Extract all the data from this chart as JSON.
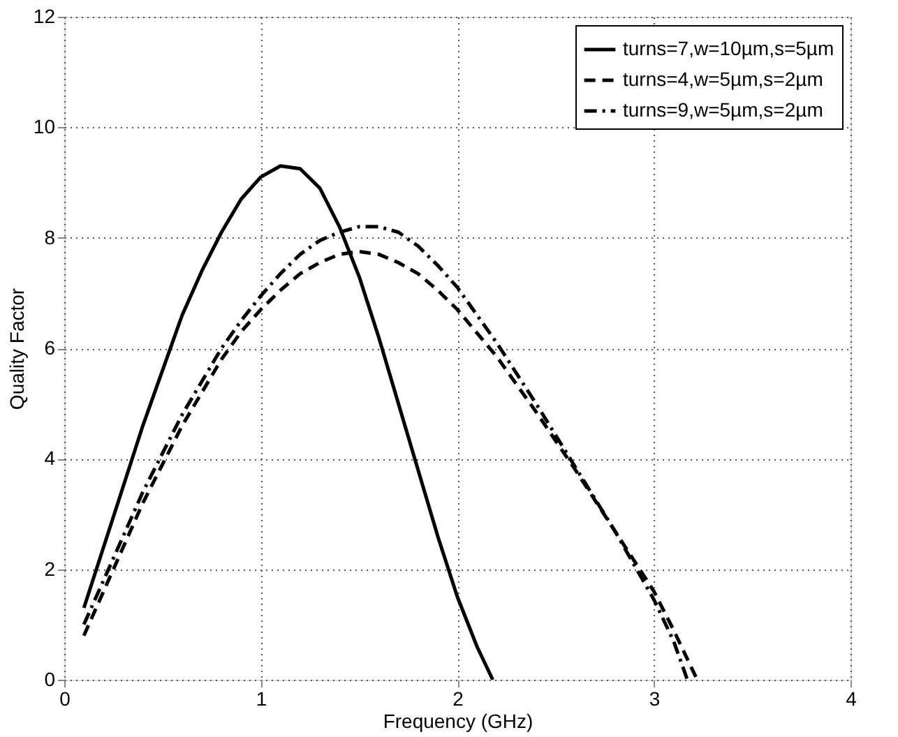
{
  "chart_data": {
    "type": "line",
    "xlabel": "Frequency (GHz)",
    "ylabel": "Quality Factor",
    "xlim": [
      0,
      4
    ],
    "ylim": [
      0,
      12
    ],
    "xticks": [
      0,
      1,
      2,
      3,
      4
    ],
    "yticks": [
      0,
      2,
      4,
      6,
      8,
      10,
      12
    ],
    "grid": true,
    "legend": "top right",
    "series": [
      {
        "name": "turns=7,w=10µm,s=5µm",
        "color": "#000000",
        "line_style": "solid",
        "x": [
          0.1,
          0.2,
          0.3,
          0.4,
          0.5,
          0.6,
          0.7,
          0.8,
          0.9,
          1.0,
          1.1,
          1.2,
          1.3,
          1.4,
          1.5,
          1.6,
          1.7,
          1.8,
          1.9,
          2.0,
          2.1,
          2.18
        ],
        "values": [
          1.3,
          2.4,
          3.5,
          4.6,
          5.6,
          6.6,
          7.4,
          8.1,
          8.7,
          9.1,
          9.3,
          9.25,
          8.9,
          8.2,
          7.3,
          6.2,
          5.0,
          3.8,
          2.6,
          1.5,
          0.6,
          0
        ]
      },
      {
        "name": "turns=4,w=5µm,s=2µm",
        "color": "#000000",
        "line_style": "dashed",
        "x": [
          0.1,
          0.2,
          0.3,
          0.4,
          0.5,
          0.6,
          0.7,
          0.8,
          0.9,
          1.0,
          1.1,
          1.2,
          1.3,
          1.4,
          1.5,
          1.6,
          1.7,
          1.8,
          1.9,
          2.0,
          2.2,
          2.4,
          2.6,
          2.8,
          3.0,
          3.1,
          3.22
        ],
        "values": [
          0.8,
          1.6,
          2.4,
          3.2,
          3.9,
          4.6,
          5.2,
          5.8,
          6.3,
          6.7,
          7.05,
          7.35,
          7.55,
          7.7,
          7.75,
          7.7,
          7.55,
          7.35,
          7.05,
          6.7,
          5.85,
          4.85,
          3.8,
          2.7,
          1.6,
          0.9,
          0
        ]
      },
      {
        "name": "turns=9,w=5µm,s=2µm",
        "color": "#000000",
        "line_style": "dashdot",
        "x": [
          0.1,
          0.2,
          0.3,
          0.4,
          0.5,
          0.6,
          0.7,
          0.8,
          0.9,
          1.0,
          1.1,
          1.2,
          1.3,
          1.4,
          1.5,
          1.6,
          1.7,
          1.8,
          1.9,
          2.0,
          2.2,
          2.4,
          2.6,
          2.8,
          3.0,
          3.1,
          3.17
        ],
        "values": [
          1.0,
          1.8,
          2.6,
          3.4,
          4.1,
          4.8,
          5.4,
          6.0,
          6.5,
          6.95,
          7.35,
          7.7,
          7.95,
          8.1,
          8.2,
          8.2,
          8.1,
          7.85,
          7.5,
          7.1,
          6.1,
          5.0,
          3.85,
          2.7,
          1.45,
          0.7,
          0
        ]
      }
    ]
  }
}
